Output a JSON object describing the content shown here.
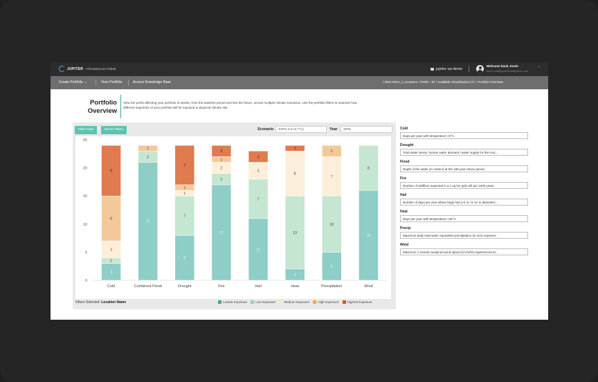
{
  "topbar": {
    "brand": "JUPITER",
    "product": "• ClimateScore Global",
    "org": "jupiter-sa-demo",
    "welcome": "Welcome back, Kevin",
    "email": "kevin.vail@jupiterintelligence.com"
  },
  "nav": {
    "create": "Create Portfolio",
    "view": "View Portfolio",
    "kb": "Access Knowledge Base",
    "crumbs": [
      "/ 2024-0523_C_locations",
      "/ Perils + El",
      "/ Available Visualizations (7)",
      "/ Portfolio Overview"
    ]
  },
  "page": {
    "title_line1": "Portfolio",
    "title_line2": "Overview",
    "intro": "View the perils affecting your portfolio of assets, from the baseline period and into the future, across multiple climate scenarios. Use the portfolio filters to examine how different segments of your portfolio will be exposed to physical climate risk."
  },
  "controls": {
    "filter": "Filter Data",
    "reset": "Reset Filters",
    "scenario_label": "Scenario",
    "scenario_value": "SSP2-4.5 (2.7°C)",
    "year_label": "Year",
    "year_value": "2020",
    "filters_selected_label": "Filters Selected:",
    "filters_selected_value": "Location Name"
  },
  "colors": {
    "lowest": "#8fcdc7",
    "low": "#c5e6d0",
    "medium": "#fcefd9",
    "high": "#f4c99a",
    "highest": "#e07a4f"
  },
  "chart_data": {
    "type": "bar",
    "stacked": true,
    "categories": [
      "Cold",
      "Combined Flood",
      "Drought",
      "Fire",
      "Hail",
      "Heat",
      "Precipitation",
      "Wind"
    ],
    "ylim": [
      0,
      25
    ],
    "yticks": [
      0,
      5,
      10,
      15,
      20,
      25
    ],
    "grid": false,
    "legend_position": "bottom-right",
    "series": [
      {
        "name": "Lowest Exposure",
        "values": [
          3,
          21,
          8,
          17,
          11,
          2,
          5,
          16
        ]
      },
      {
        "name": "Low Exposure",
        "values": [
          1,
          2,
          7,
          2,
          7,
          13,
          10,
          8
        ]
      },
      {
        "name": "Medium Exposure",
        "values": [
          3,
          0,
          1,
          2,
          3,
          8,
          7,
          0
        ]
      },
      {
        "name": "High Exposure",
        "values": [
          8,
          1,
          1,
          1,
          0,
          0,
          2,
          0
        ]
      },
      {
        "name": "Highest Exposure",
        "values": [
          9,
          0,
          7,
          2,
          2,
          1,
          0,
          0
        ]
      }
    ]
  },
  "definitions": [
    {
      "title": "Cold",
      "text": "Days per year with temperature <0°C"
    },
    {
      "title": "Drought",
      "text": "Total water stress, human water demand / water supply for the loca..."
    },
    {
      "title": "Flood",
      "text": "Depth of the water (in meters) at the 100-year return period"
    },
    {
      "title": "Fire",
      "text": "Number of wildfires expected in a 1 sq km grid cell per 1000 years"
    },
    {
      "title": "Hail",
      "text": "Number of days per year where large hail (>2 in / 5 cm in diameter) ..."
    },
    {
      "title": "Heat",
      "text": "Days per year with temperature >35°C"
    },
    {
      "title": "Precip",
      "text": "Maximum daily total water equivalent precipitation (in mm) experien..."
    },
    {
      "title": "Wind",
      "text": "Maximum 1-minute sustained wind speed (in km/hr) experienced at..."
    }
  ]
}
